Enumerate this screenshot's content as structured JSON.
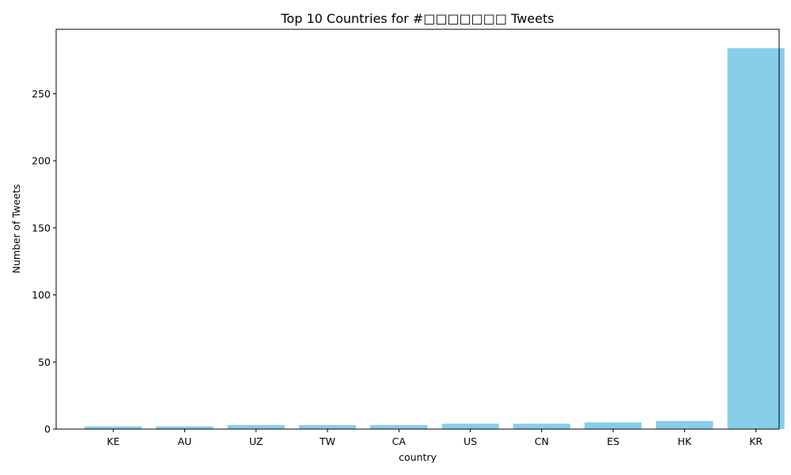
{
  "chart_data": {
    "type": "bar",
    "title": "Top 10 Countries for #□□□□□□□ Tweets",
    "xlabel": "country",
    "ylabel": "Number of Tweets",
    "categories": [
      "KE",
      "AU",
      "UZ",
      "TW",
      "CA",
      "US",
      "CN",
      "ES",
      "HK",
      "KR"
    ],
    "values": [
      2,
      2,
      3,
      3,
      3,
      4,
      4,
      5,
      6,
      284
    ],
    "ylim": [
      0,
      298
    ],
    "yticks": [
      0,
      50,
      100,
      150,
      200,
      250
    ],
    "grid": false,
    "bar_color": "#87ceeb"
  }
}
